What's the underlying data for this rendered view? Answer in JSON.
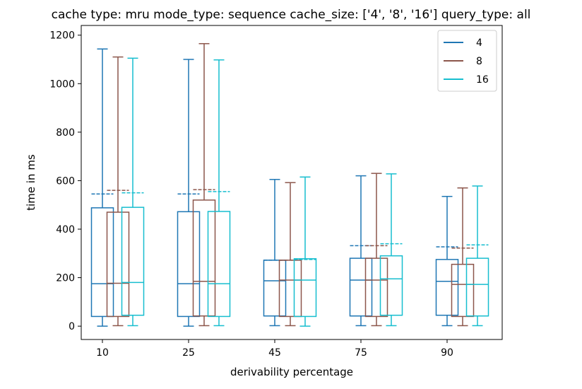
{
  "chart_data": {
    "type": "box",
    "title": "cache type: mru mode_type: sequence cache_size: ['4', '8', '16'] query_type: all",
    "xlabel": "derivability percentage",
    "ylabel": "time in ms",
    "categories": [
      "10",
      "25",
      "45",
      "75",
      "90"
    ],
    "ylim": [
      -55,
      1240
    ],
    "yticks": [
      0,
      200,
      400,
      600,
      800,
      1000,
      1200
    ],
    "grid": false,
    "legend_position": "top-right",
    "series": [
      {
        "name": "4",
        "color": "#1f77b4",
        "boxes": [
          {
            "whislo": 0,
            "q1": 40,
            "med": 175,
            "q3": 488,
            "whishi": 1143,
            "mean": 545
          },
          {
            "whislo": 0,
            "q1": 40,
            "med": 175,
            "q3": 472,
            "whishi": 1100,
            "mean": 545
          },
          {
            "whislo": 2,
            "q1": 42,
            "med": 187,
            "q3": 272,
            "whishi": 605,
            "mean": 272
          },
          {
            "whislo": 2,
            "q1": 42,
            "med": 190,
            "q3": 280,
            "whishi": 620,
            "mean": 332
          },
          {
            "whislo": 2,
            "q1": 45,
            "med": 185,
            "q3": 275,
            "whishi": 535,
            "mean": 327
          }
        ]
      },
      {
        "name": "8",
        "color": "#8c564b",
        "boxes": [
          {
            "whislo": 2,
            "q1": 40,
            "med": 177,
            "q3": 470,
            "whishi": 1110,
            "mean": 560
          },
          {
            "whislo": 2,
            "q1": 42,
            "med": 185,
            "q3": 520,
            "whishi": 1165,
            "mean": 563
          },
          {
            "whislo": 2,
            "q1": 40,
            "med": 190,
            "q3": 272,
            "whishi": 592,
            "mean": 272
          },
          {
            "whislo": 2,
            "q1": 40,
            "med": 190,
            "q3": 280,
            "whishi": 630,
            "mean": 332
          },
          {
            "whislo": 2,
            "q1": 40,
            "med": 172,
            "q3": 255,
            "whishi": 570,
            "mean": 322
          }
        ]
      },
      {
        "name": "16",
        "color": "#17becf",
        "boxes": [
          {
            "whislo": 2,
            "q1": 45,
            "med": 180,
            "q3": 490,
            "whishi": 1105,
            "mean": 550
          },
          {
            "whislo": 2,
            "q1": 40,
            "med": 175,
            "q3": 473,
            "whishi": 1098,
            "mean": 555
          },
          {
            "whislo": 0,
            "q1": 40,
            "med": 190,
            "q3": 278,
            "whishi": 615,
            "mean": 275
          },
          {
            "whislo": 2,
            "q1": 45,
            "med": 195,
            "q3": 290,
            "whishi": 628,
            "mean": 340
          },
          {
            "whislo": 2,
            "q1": 42,
            "med": 172,
            "q3": 280,
            "whishi": 578,
            "mean": 335
          }
        ]
      }
    ]
  }
}
